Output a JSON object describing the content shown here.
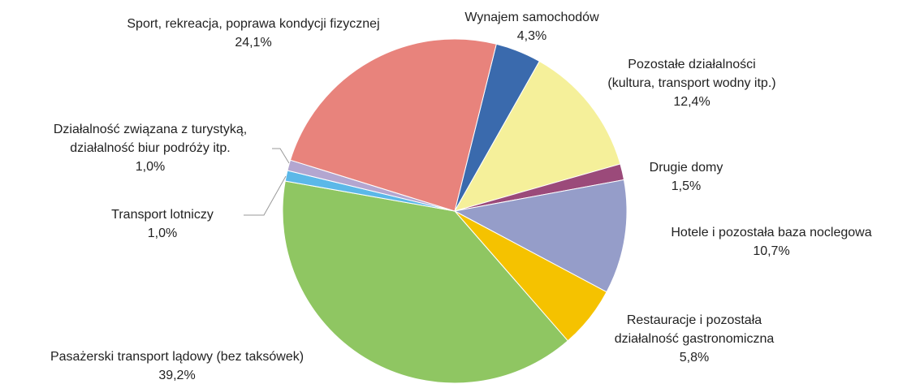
{
  "chart_data": {
    "type": "pie",
    "categories": [
      [
        "Wynajem samochodów"
      ],
      [
        "Pozostałe działalności",
        "(kultura, transport wodny itp.)"
      ],
      [
        "Drugie domy"
      ],
      [
        "Hotele i pozostała baza noclegowa"
      ],
      [
        "Restauracje i pozostała",
        "działalność gastronomiczna"
      ],
      [
        "Pasażerski transport lądowy (bez taksówek)"
      ],
      [
        "Transport lotniczy"
      ],
      [
        "Działalność związana z turystyką,",
        "działalność biur podróży itp."
      ],
      [
        "Sport, rekreacja, poprawa kondycji  fizycznej"
      ]
    ],
    "values": [
      4.3,
      12.4,
      1.5,
      10.7,
      5.8,
      39.2,
      1.0,
      1.0,
      24.1
    ],
    "value_labels": [
      "4,3%",
      "12,4%",
      "1,5%",
      "10,7%",
      "5,8%",
      "39,2%",
      "1,0%",
      "1,0%",
      "24,1%"
    ],
    "colors": [
      "#3a6aad",
      "#f5f09a",
      "#9b4a7a",
      "#959dc9",
      "#f5c200",
      "#8fc662",
      "#5bb8e8",
      "#b3a6d0",
      "#e8837c"
    ]
  }
}
